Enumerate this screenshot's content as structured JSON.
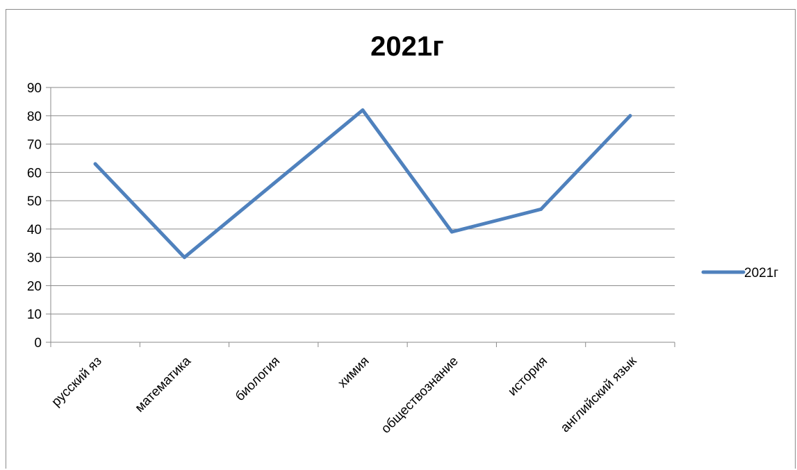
{
  "chart_data": {
    "type": "line",
    "title": "2021г",
    "categories": [
      "русский яз",
      "математика",
      "биология",
      "химия",
      "обществознание",
      "история",
      "английский язык"
    ],
    "series": [
      {
        "name": "2021г",
        "values": [
          63,
          30,
          56,
          82,
          39,
          47,
          80
        ],
        "color": "#4f81bd"
      }
    ],
    "y_ticks": [
      "0",
      "10",
      "20",
      "30",
      "40",
      "50",
      "60",
      "70",
      "80",
      "90"
    ],
    "ylim": [
      0,
      90
    ],
    "grid": true,
    "legend_position": "right"
  }
}
